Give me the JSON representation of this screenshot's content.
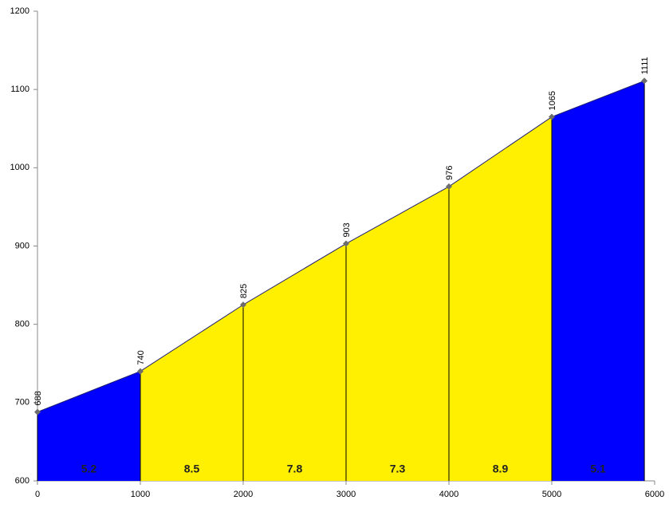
{
  "chart_data": {
    "type": "area",
    "x": [
      0,
      1000,
      2000,
      3000,
      4000,
      5000,
      5900
    ],
    "values": [
      688,
      740,
      825,
      903,
      976,
      1065,
      1111
    ],
    "segment_values": [
      5.2,
      8.5,
      7.8,
      7.3,
      8.9,
      5.1
    ],
    "segment_colors": [
      "#0000ff",
      "#ffef00",
      "#ffef00",
      "#ffef00",
      "#ffef00",
      "#0000ff"
    ],
    "line_color": "#1f1f6e",
    "marker_color": "#6d6d6d",
    "xlim": [
      0,
      6000
    ],
    "xticks": [
      0,
      1000,
      2000,
      3000,
      4000,
      5000,
      6000
    ],
    "ylim": [
      600,
      1200
    ],
    "yticks": [
      600,
      700,
      800,
      900,
      1000,
      1100,
      1200
    ]
  }
}
